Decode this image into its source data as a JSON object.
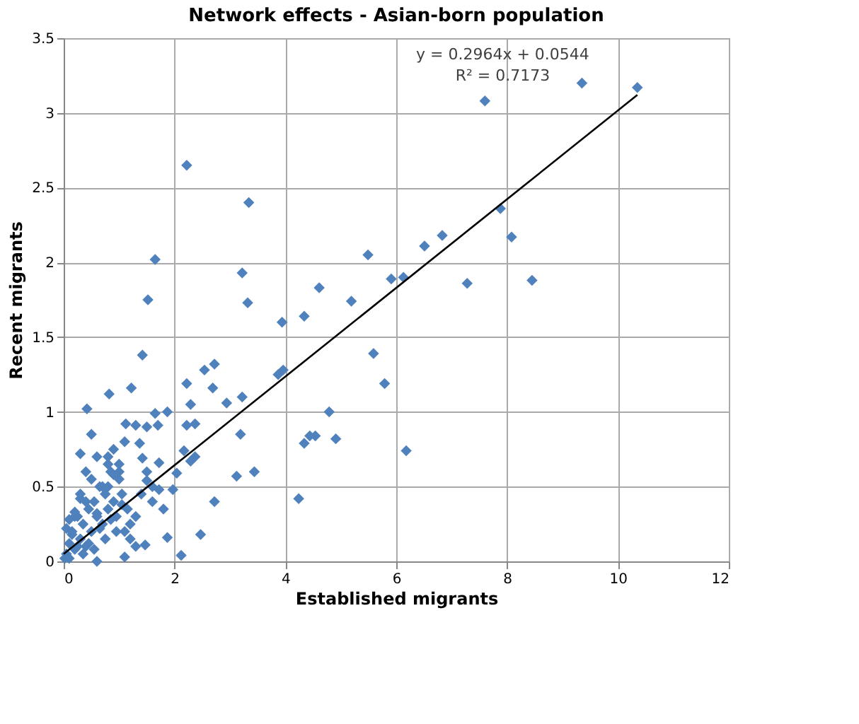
{
  "chart_data": {
    "type": "scatter",
    "title": "Network effects - Asian-born population",
    "xlabel": "Established migrants",
    "ylabel": "Recent migrants",
    "xlim": [
      0,
      12
    ],
    "xticks": [
      0,
      2,
      4,
      6,
      8,
      10,
      12
    ],
    "ylim": [
      0,
      3.5
    ],
    "yticks": [
      0,
      0.5,
      1,
      1.5,
      2,
      2.5,
      3,
      3.5
    ],
    "grid": true,
    "marker": "diamond",
    "annotations": [
      "y = 0.2964x + 0.0544",
      "R² = 0.7173"
    ],
    "series": [
      {
        "color": "#4f81bd",
        "x": [
          4.61,
          5.19,
          5.49,
          5.91,
          6.13,
          6.51,
          6.83,
          7.28,
          7.88,
          8.08,
          8.45,
          7.6,
          10.35,
          9.35,
          5.59,
          5.79,
          4.79,
          4.91,
          6.18,
          4.54,
          2.22,
          3.34,
          1.65,
          1.52,
          3.22,
          3.32,
          3.94,
          4.34,
          1.42,
          0.82,
          1.22,
          0.42,
          2.22,
          2.54,
          2.72,
          2.69,
          2.94,
          3.22,
          3.87,
          3.96,
          3.19,
          3.12,
          3.44,
          4.24,
          4.34,
          4.44,
          2.72,
          2.29,
          2.22,
          2.37,
          1.87,
          1.65,
          1.12,
          1.3,
          2.29,
          2.37,
          2.17,
          2.04,
          1.72,
          1.97,
          1.87,
          2.12,
          2.47,
          1.47,
          1.1,
          1.72,
          1.6,
          1.5,
          1.37,
          1.42,
          1.7,
          1.5,
          0.05,
          0.1,
          0.15,
          0.2,
          0.25,
          0.3,
          0.35,
          0.4,
          0.45,
          0.5,
          0.55,
          0.6,
          0.65,
          0.7,
          0.75,
          0.8,
          0.85,
          0.9,
          0.95,
          1.0,
          1.05,
          1.1,
          1.15,
          1.2,
          0.1,
          0.2,
          0.3,
          0.4,
          0.5,
          0.6,
          0.7,
          0.8,
          0.9,
          1.0,
          1.1,
          1.2,
          1.3,
          0.15,
          0.25,
          0.35,
          0.45,
          0.55,
          0.65,
          0.75,
          0.85,
          0.95,
          1.05,
          0.4,
          0.6,
          0.8,
          1.0,
          0.3,
          0.5,
          0.9,
          0.05,
          0.1,
          0.2,
          0.3,
          0.02,
          0.6,
          0.8,
          1.4,
          1.6,
          1.8,
          1.3,
          1.5
        ],
        "values": [
          1.83,
          1.74,
          2.05,
          1.89,
          1.9,
          2.11,
          2.18,
          1.86,
          2.36,
          2.17,
          1.88,
          3.08,
          3.17,
          3.2,
          1.39,
          1.19,
          1.0,
          0.82,
          0.74,
          0.84,
          2.65,
          2.4,
          2.02,
          1.75,
          1.93,
          1.73,
          1.6,
          1.64,
          1.38,
          1.12,
          1.16,
          1.02,
          1.19,
          1.28,
          1.32,
          1.16,
          1.06,
          1.1,
          1.25,
          1.28,
          0.85,
          0.57,
          0.6,
          0.42,
          0.79,
          0.84,
          0.4,
          1.05,
          0.91,
          0.92,
          1.0,
          0.99,
          0.92,
          0.91,
          0.67,
          0.7,
          0.74,
          0.59,
          0.66,
          0.48,
          0.16,
          0.04,
          0.18,
          0.11,
          0.03,
          0.48,
          0.5,
          0.54,
          0.79,
          0.69,
          0.91,
          0.9,
          0.05,
          0.12,
          0.2,
          0.08,
          0.3,
          0.15,
          0.25,
          0.1,
          0.35,
          0.2,
          0.4,
          0.3,
          0.5,
          0.25,
          0.45,
          0.35,
          0.6,
          0.4,
          0.3,
          0.55,
          0.45,
          0.2,
          0.35,
          0.25,
          0.02,
          0.3,
          0.45,
          0.6,
          0.55,
          0.7,
          0.5,
          0.65,
          0.75,
          0.6,
          0.8,
          0.15,
          0.1,
          0.18,
          0.1,
          0.05,
          0.12,
          0.08,
          0.22,
          0.15,
          0.28,
          0.2,
          0.38,
          0.4,
          0.32,
          0.7,
          0.65,
          0.72,
          0.85,
          0.58,
          0.22,
          0.28,
          0.33,
          0.42,
          0.02,
          0.0,
          0.5,
          0.45,
          0.4,
          0.35,
          0.3,
          0.6
        ]
      },
      {
        "type": "line",
        "marker": "none",
        "color": "#000000",
        "x": [
          0,
          10.35
        ],
        "values": [
          0.05,
          3.12
        ]
      }
    ]
  }
}
